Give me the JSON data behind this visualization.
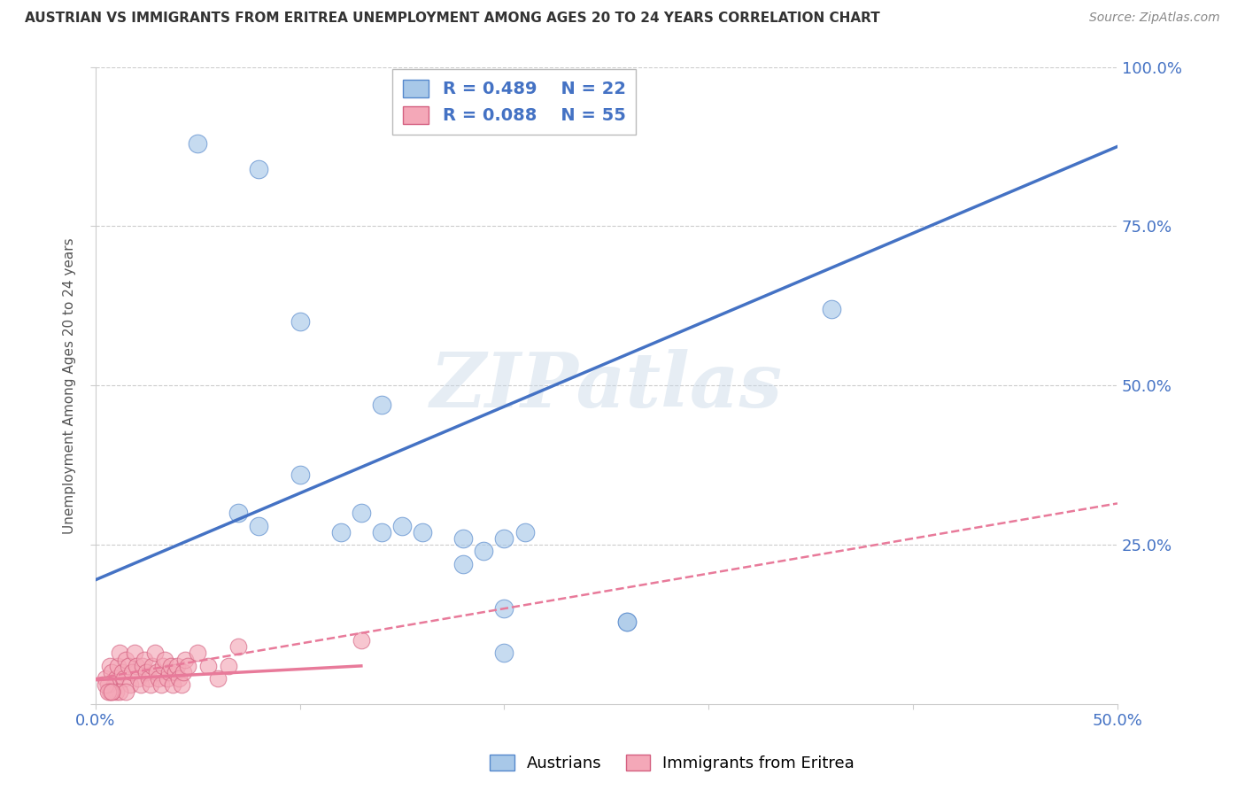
{
  "title": "AUSTRIAN VS IMMIGRANTS FROM ERITREA UNEMPLOYMENT AMONG AGES 20 TO 24 YEARS CORRELATION CHART",
  "source": "Source: ZipAtlas.com",
  "ylabel": "Unemployment Among Ages 20 to 24 years",
  "xlim": [
    0.0,
    0.5
  ],
  "ylim": [
    0.0,
    1.0
  ],
  "xticks": [
    0.0,
    0.1,
    0.2,
    0.3,
    0.4,
    0.5
  ],
  "xticklabels": [
    "0.0%",
    "",
    "",
    "",
    "",
    "50.0%"
  ],
  "yticks": [
    0.0,
    0.25,
    0.5,
    0.75,
    1.0
  ],
  "yticklabels_right": [
    "",
    "25.0%",
    "50.0%",
    "75.0%",
    "100.0%"
  ],
  "legend_r_blue": "R = 0.489",
  "legend_n_blue": "N = 22",
  "legend_r_pink": "R = 0.088",
  "legend_n_pink": "N = 55",
  "blue_color": "#a8c8e8",
  "pink_color": "#f4a8b8",
  "blue_edge_color": "#5588cc",
  "pink_edge_color": "#d46080",
  "blue_line_color": "#4472c4",
  "pink_line_color": "#e87a9a",
  "watermark": "ZIPatlas",
  "blue_scatter_x": [
    0.05,
    0.08,
    0.1,
    0.14,
    0.1,
    0.13,
    0.15,
    0.18,
    0.07,
    0.08,
    0.12,
    0.14,
    0.16,
    0.18,
    0.19,
    0.2,
    0.21,
    0.26,
    0.26,
    0.36,
    0.2,
    0.2
  ],
  "blue_scatter_y": [
    0.88,
    0.84,
    0.6,
    0.47,
    0.36,
    0.3,
    0.28,
    0.22,
    0.3,
    0.28,
    0.27,
    0.27,
    0.27,
    0.26,
    0.24,
    0.26,
    0.27,
    0.13,
    0.13,
    0.62,
    0.15,
    0.08
  ],
  "pink_scatter_x": [
    0.005,
    0.007,
    0.008,
    0.009,
    0.01,
    0.011,
    0.012,
    0.013,
    0.014,
    0.015,
    0.016,
    0.017,
    0.018,
    0.019,
    0.02,
    0.021,
    0.022,
    0.023,
    0.024,
    0.025,
    0.026,
    0.027,
    0.028,
    0.029,
    0.03,
    0.031,
    0.032,
    0.033,
    0.034,
    0.035,
    0.036,
    0.037,
    0.038,
    0.039,
    0.04,
    0.041,
    0.042,
    0.043,
    0.044,
    0.045,
    0.05,
    0.055,
    0.06,
    0.065,
    0.07,
    0.01,
    0.012,
    0.015,
    0.008,
    0.006,
    0.007,
    0.005,
    0.006,
    0.008,
    0.13
  ],
  "pink_scatter_y": [
    0.04,
    0.06,
    0.05,
    0.03,
    0.04,
    0.06,
    0.08,
    0.05,
    0.04,
    0.07,
    0.06,
    0.03,
    0.05,
    0.08,
    0.06,
    0.04,
    0.03,
    0.06,
    0.07,
    0.05,
    0.04,
    0.03,
    0.06,
    0.08,
    0.05,
    0.04,
    0.03,
    0.06,
    0.07,
    0.04,
    0.05,
    0.06,
    0.03,
    0.05,
    0.06,
    0.04,
    0.03,
    0.05,
    0.07,
    0.06,
    0.08,
    0.06,
    0.04,
    0.06,
    0.09,
    0.02,
    0.02,
    0.02,
    0.02,
    0.03,
    0.02,
    0.03,
    0.02,
    0.02,
    0.1
  ],
  "blue_line_x": [
    0.0,
    0.5
  ],
  "blue_line_y": [
    0.195,
    0.875
  ],
  "pink_dashed_line_x": [
    0.0,
    0.5
  ],
  "pink_dashed_line_y": [
    0.04,
    0.315
  ],
  "pink_solid_line_x": [
    0.0,
    0.13
  ],
  "pink_solid_line_y": [
    0.038,
    0.06
  ],
  "bg_color": "#ffffff",
  "grid_color": "#cccccc",
  "axis_color": "#cccccc",
  "tick_color": "#4472c4",
  "ylabel_color": "#555555",
  "title_color": "#333333",
  "source_color": "#888888"
}
